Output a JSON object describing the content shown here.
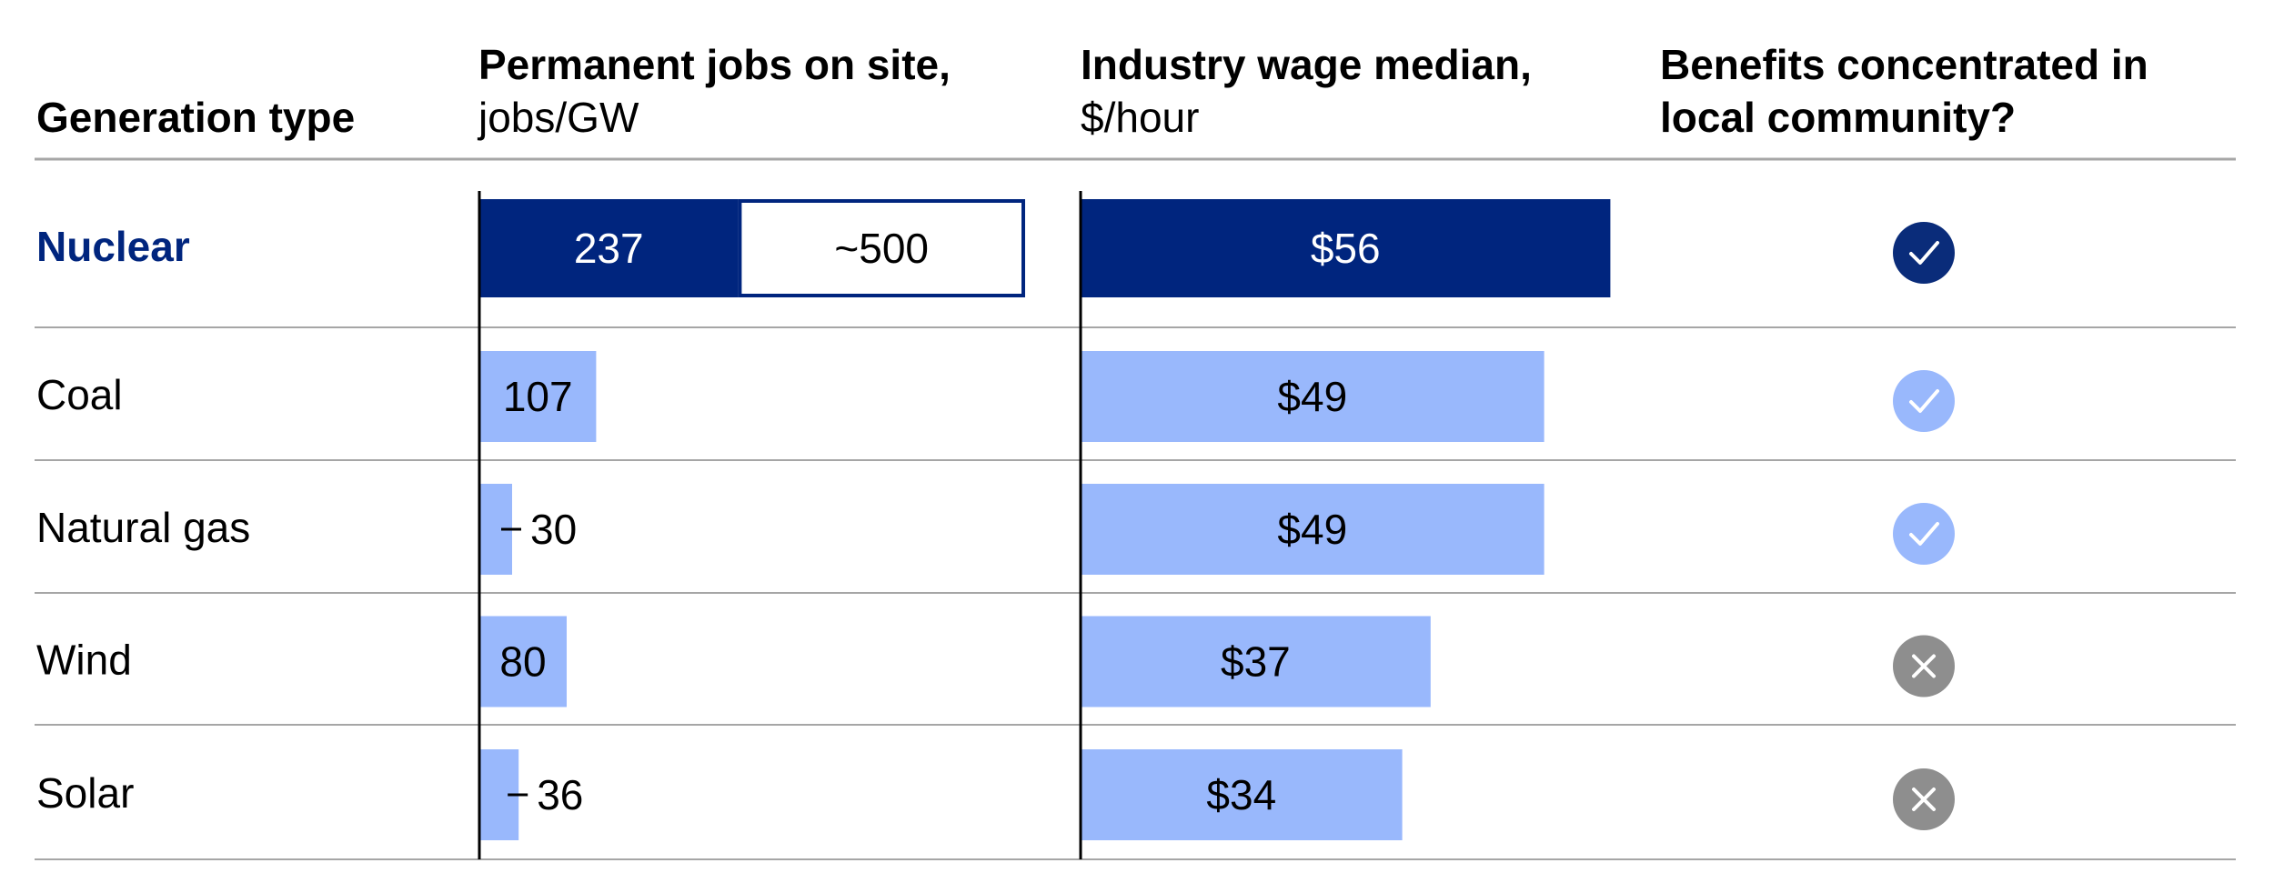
{
  "headers": {
    "generation_type": "Generation type",
    "jobs_title": "Permanent jobs on site,",
    "jobs_unit": "jobs/GW",
    "wage_title": "Industry wage median,",
    "wage_unit": "$/hour",
    "benefits_line1": "Benefits concentrated in",
    "benefits_line2": "local community?"
  },
  "colors": {
    "highlight": "#00257E",
    "bar": "#99B8FC",
    "check_dark": "#0A2C7A",
    "check_light": "#99B8FC",
    "cross": "#8E8E8E",
    "divider": "#A6A6A6"
  },
  "chart_data": {
    "type": "bar",
    "categories": [
      "Nuclear",
      "Coal",
      "Natural gas",
      "Wind",
      "Solar"
    ],
    "highlight_category": "Nuclear",
    "series": [
      {
        "name": "Permanent jobs on site, jobs/GW",
        "values": [
          237,
          107,
          30,
          80,
          36
        ],
        "labels": [
          "237",
          "107",
          "30",
          "80",
          "36"
        ],
        "extension": {
          "category": "Nuclear",
          "value": 500,
          "label": "~500"
        }
      },
      {
        "name": "Industry wage median, $/hour",
        "values": [
          56,
          49,
          49,
          37,
          34
        ],
        "labels": [
          "$56",
          "$49",
          "$49",
          "$37",
          "$34"
        ]
      }
    ],
    "benefits_local": [
      true,
      true,
      true,
      false,
      false
    ]
  }
}
